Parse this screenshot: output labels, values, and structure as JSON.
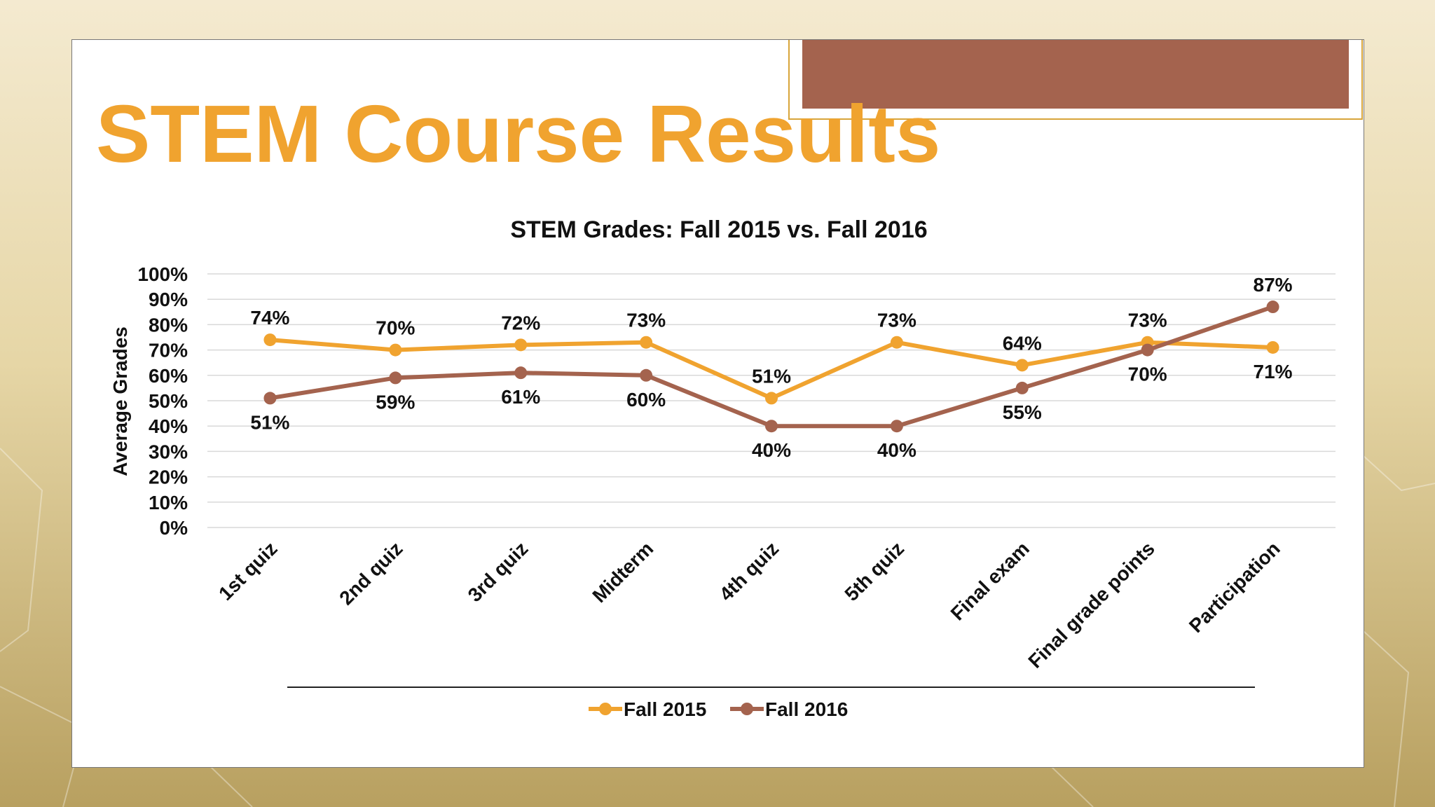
{
  "slide": {
    "title": "STEM Course Results"
  },
  "colors": {
    "fall2015": "#f0a32f",
    "fall2016": "#a4634e",
    "accent_title": "#f0a32f"
  },
  "chart_data": {
    "type": "line",
    "title": "STEM Grades: Fall 2015 vs. Fall 2016",
    "xlabel": "",
    "ylabel": "Average Grades",
    "ylim": [
      0,
      100
    ],
    "yticks": [
      "0%",
      "10%",
      "20%",
      "30%",
      "40%",
      "50%",
      "60%",
      "70%",
      "80%",
      "90%",
      "100%"
    ],
    "grid": true,
    "legend_position": "bottom",
    "categories": [
      "1st quiz",
      "2nd quiz",
      "3rd quiz",
      "Midterm",
      "4th quiz",
      "5th quiz",
      "Final exam",
      "Final grade points",
      "Participation"
    ],
    "series": [
      {
        "name": "Fall 2015",
        "color": "#f0a32f",
        "values": [
          74,
          70,
          72,
          73,
          51,
          73,
          64,
          73,
          71
        ],
        "labels": [
          "74%",
          "70%",
          "72%",
          "73%",
          "51%",
          "73%",
          "64%",
          "73%",
          "71%"
        ]
      },
      {
        "name": "Fall 2016",
        "color": "#a4634e",
        "values": [
          51,
          59,
          61,
          60,
          40,
          40,
          55,
          70,
          87
        ],
        "labels": [
          "51%",
          "59%",
          "61%",
          "60%",
          "40%",
          "40%",
          "55%",
          "70%",
          "87%"
        ]
      }
    ]
  }
}
